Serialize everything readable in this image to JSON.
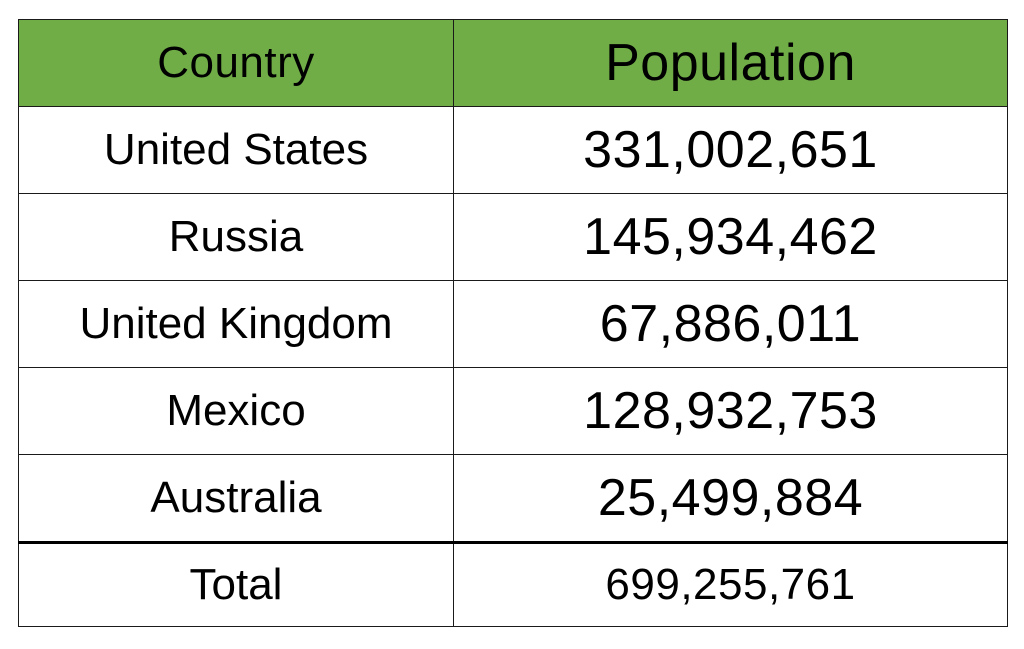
{
  "table": {
    "header_color": "#70AD47",
    "columns": [
      "Country",
      "Population"
    ],
    "rows": [
      {
        "country": "United States",
        "population": "331,002,651"
      },
      {
        "country": "Russia",
        "population": "145,934,462"
      },
      {
        "country": "United Kingdom",
        "population": "67,886,011"
      },
      {
        "country": "Mexico",
        "population": "128,932,753"
      },
      {
        "country": "Australia",
        "population": "25,499,884"
      }
    ],
    "total": {
      "label": "Total",
      "population": "699,255,761"
    }
  }
}
